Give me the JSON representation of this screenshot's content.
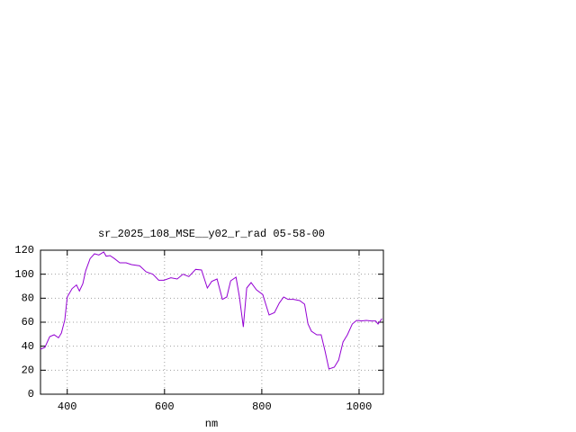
{
  "chart_data": {
    "type": "line",
    "title": "sr_2025_108_MSE__y02_r_rad 05-58-00",
    "xlabel": "nm",
    "x": [
      345,
      354,
      364,
      373,
      382,
      388,
      395,
      400,
      410,
      419,
      425,
      432,
      438,
      447,
      456,
      465,
      475,
      480,
      488,
      497,
      508,
      521,
      532,
      549,
      562,
      576,
      588,
      599,
      613,
      626,
      638,
      650,
      664,
      676,
      688,
      697,
      708,
      719,
      728,
      736,
      747,
      754,
      762,
      769,
      778,
      789,
      802,
      815,
      826,
      836,
      845,
      854,
      865,
      878,
      888,
      895,
      902,
      913,
      922,
      930,
      938,
      949,
      958,
      967,
      976,
      986,
      995,
      1004,
      1015,
      1025,
      1034,
      1039,
      1047
    ],
    "series": [
      {
        "color": "#9400d3",
        "values": [
          37.5,
          39,
          48,
          49.5,
          47,
          51,
          62,
          81,
          88,
          91,
          86,
          92,
          103,
          113,
          117,
          116,
          118.5,
          115,
          115.5,
          113,
          109.5,
          109.5,
          108,
          107,
          102,
          100,
          95,
          95,
          97,
          96,
          100,
          98,
          104,
          103.5,
          88.5,
          94,
          96,
          79,
          81,
          94.5,
          97.5,
          81,
          56,
          88.5,
          93,
          87,
          83,
          66,
          68,
          76,
          81,
          79,
          79,
          78,
          75,
          58.5,
          52.5,
          49.5,
          49.5,
          36,
          21,
          22.5,
          28.5,
          43.5,
          49.5,
          58.5,
          61.5,
          61,
          61.5,
          61,
          61,
          58.5,
          63
        ]
      }
    ],
    "xlim": [
      345,
      1050
    ],
    "ylim": [
      0,
      120
    ],
    "xticks": [
      400,
      600,
      800,
      1000
    ],
    "yticks": [
      0,
      20,
      40,
      60,
      80,
      100,
      120
    ],
    "grid": true
  }
}
